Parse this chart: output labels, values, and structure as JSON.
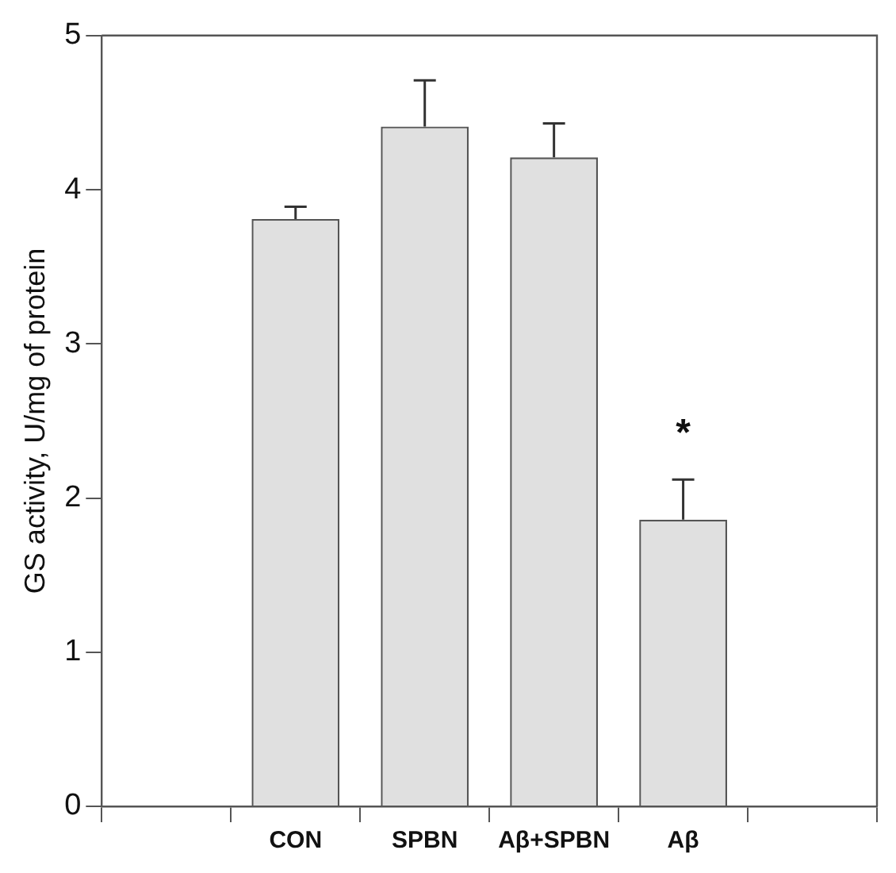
{
  "chart_data": {
    "type": "bar",
    "ylabel": "GS activity, U/mg of protein",
    "categories": [
      "CON",
      "SPBN",
      "Aβ+SPBN",
      "Aβ"
    ],
    "values": [
      3.81,
      4.41,
      4.21,
      1.86
    ],
    "errors": [
      0.08,
      0.3,
      0.22,
      0.26
    ],
    "color": "#e0e0e0",
    "ylim": [
      0,
      5
    ],
    "yticks": [
      0,
      1,
      2,
      3,
      4,
      5
    ],
    "grid": false,
    "legend": false,
    "annotations": [
      "*"
    ]
  }
}
